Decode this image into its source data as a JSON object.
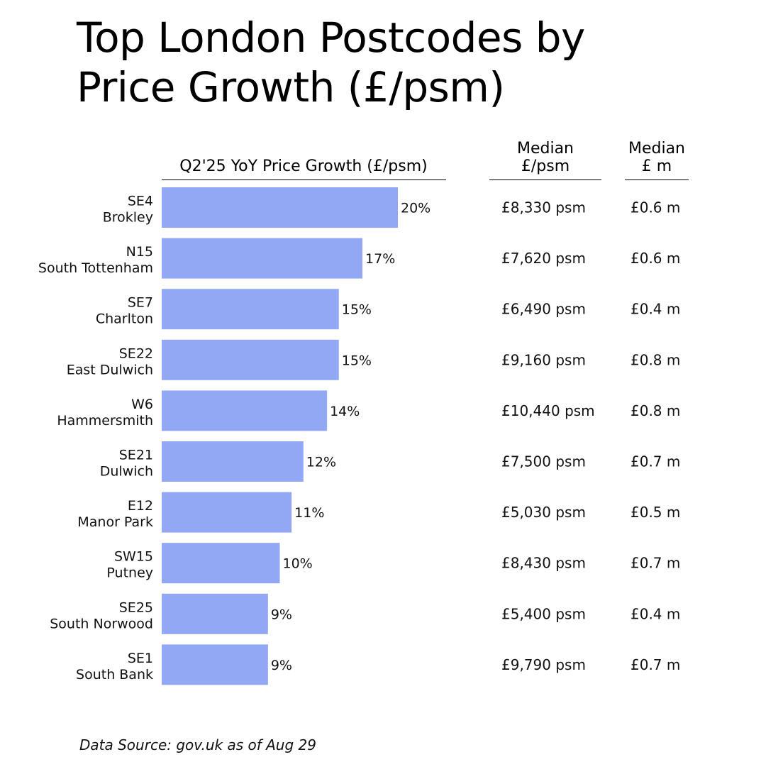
{
  "title_lines": [
    "Top London Postcodes by",
    "Price Growth (£/psm)"
  ],
  "columns": {
    "growth": "Q2'25 YoY Price Growth (£/psm)",
    "median_psm": [
      "Median",
      "£/psm"
    ],
    "median_price": [
      "Median",
      "£ m"
    ]
  },
  "source": "Data Source: gov.uk as of Aug 29",
  "colors": {
    "bar": "#93a8f5",
    "text": "#111111",
    "rule": "#000000"
  },
  "chart_data": {
    "type": "bar",
    "orientation": "horizontal",
    "title": "Top London Postcodes by Price Growth (£/psm)",
    "xlabel": "Q2'25 YoY Price Growth (£/psm)",
    "xlim": [
      0,
      20
    ],
    "grid": false,
    "rows": [
      {
        "code": "SE4",
        "area": "Brokley",
        "growth": 20,
        "growth_label": "20%",
        "median_psm": "£8,330 psm",
        "median_price": "£0.6 m"
      },
      {
        "code": "N15",
        "area": "South Tottenham",
        "growth": 17,
        "growth_label": "17%",
        "median_psm": "£7,620 psm",
        "median_price": "£0.6 m"
      },
      {
        "code": "SE7",
        "area": "Charlton",
        "growth": 15,
        "growth_label": "15%",
        "median_psm": "£6,490 psm",
        "median_price": "£0.4 m"
      },
      {
        "code": "SE22",
        "area": "East Dulwich",
        "growth": 15,
        "growth_label": "15%",
        "median_psm": "£9,160 psm",
        "median_price": "£0.8 m"
      },
      {
        "code": "W6",
        "area": "Hammersmith",
        "growth": 14,
        "growth_label": "14%",
        "median_psm": "£10,440 psm",
        "median_price": "£0.8 m"
      },
      {
        "code": "SE21",
        "area": "Dulwich",
        "growth": 12,
        "growth_label": "12%",
        "median_psm": "£7,500 psm",
        "median_price": "£0.7 m"
      },
      {
        "code": "E12",
        "area": "Manor Park",
        "growth": 11,
        "growth_label": "11%",
        "median_psm": "£5,030 psm",
        "median_price": "£0.5 m"
      },
      {
        "code": "SW15",
        "area": "Putney",
        "growth": 10,
        "growth_label": "10%",
        "median_psm": "£8,430 psm",
        "median_price": "£0.7 m"
      },
      {
        "code": "SE25",
        "area": "South Norwood",
        "growth": 9,
        "growth_label": "9%",
        "median_psm": "£5,400 psm",
        "median_price": "£0.4 m"
      },
      {
        "code": "SE1",
        "area": "South Bank",
        "growth": 9,
        "growth_label": "9%",
        "median_psm": "£9,790 psm",
        "median_price": "£0.7 m"
      }
    ]
  }
}
